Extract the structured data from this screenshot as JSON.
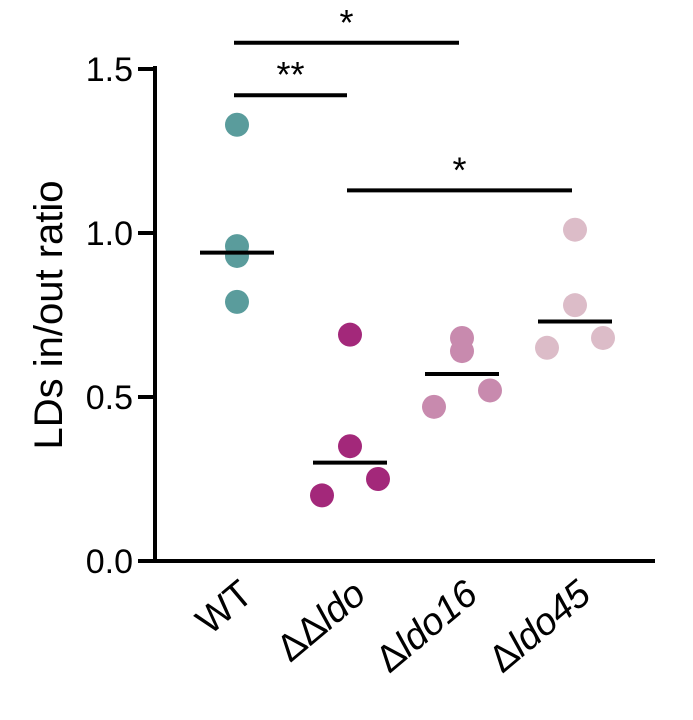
{
  "chart_data": {
    "type": "scatter",
    "ylabel": "LDs in/out ratio",
    "ylim": [
      0,
      1.5
    ],
    "yticks": [
      {
        "value": 0.0,
        "label": "0.0"
      },
      {
        "value": 0.5,
        "label": "0.5"
      },
      {
        "value": 1.0,
        "label": "1.0"
      },
      {
        "value": 1.5,
        "label": "1.5"
      }
    ],
    "categories": [
      {
        "prefix": "",
        "italic": "",
        "suffix": "WT"
      },
      {
        "prefix": "ΔΔ",
        "italic": "ldo",
        "suffix": ""
      },
      {
        "prefix": "Δ",
        "italic": "ldo16",
        "suffix": ""
      },
      {
        "prefix": "Δ",
        "italic": "ldo45",
        "suffix": ""
      }
    ],
    "groups": [
      {
        "color": "#5a9c9c",
        "values": [
          1.33,
          0.96,
          0.93,
          0.79
        ],
        "mean": 0.94
      },
      {
        "color": "#a3287a",
        "values": [
          0.69,
          0.35,
          0.25,
          0.2
        ],
        "mean": 0.3
      },
      {
        "color": "#c88aae",
        "values": [
          0.68,
          0.64,
          0.52,
          0.47
        ],
        "mean": 0.57
      },
      {
        "color": "#dcbcc8",
        "values": [
          1.01,
          0.78,
          0.68,
          0.65
        ],
        "mean": 0.73
      }
    ],
    "significance": [
      {
        "from": 0,
        "to": 2,
        "level": 1.58,
        "label": "*"
      },
      {
        "from": 0,
        "to": 1,
        "level": 1.42,
        "label": "**"
      },
      {
        "from": 1,
        "to": 3,
        "level": 1.13,
        "label": "*"
      }
    ],
    "grid": false
  }
}
